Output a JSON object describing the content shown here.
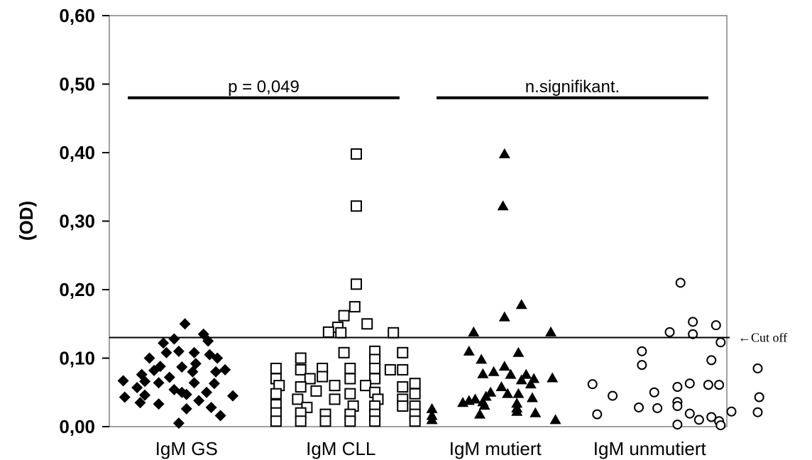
{
  "chart_data": {
    "type": "scatter",
    "title": "",
    "xlabel": "",
    "ylabel": "(OD)",
    "ylim": [
      0,
      0.6
    ],
    "yticks": [
      "0,00",
      "0,10",
      "0,20",
      "0,30",
      "0,40",
      "0,50",
      "0,60"
    ],
    "categories": [
      "IgM GS",
      "IgM CLL",
      "IgM mutiert",
      "IgM unmutiert"
    ],
    "cutoff": {
      "value": 0.13,
      "label": "←Cut off"
    },
    "annotations": [
      {
        "text": "p = 0,049",
        "groups": [
          "IgM GS",
          "IgM CLL"
        ],
        "y": 0.48
      },
      {
        "text": "n.signifikant.",
        "groups": [
          "IgM mutiert",
          "IgM unmutiert"
        ],
        "y": 0.48
      }
    ],
    "series": [
      {
        "marker": "diamond-filled",
        "points": [
          {
            "x": 0.49,
            "y": 0.15
          },
          {
            "x": 0.61,
            "y": 0.135
          },
          {
            "x": 0.42,
            "y": 0.128
          },
          {
            "x": 0.64,
            "y": 0.125
          },
          {
            "x": 0.35,
            "y": 0.122
          },
          {
            "x": 0.45,
            "y": 0.11
          },
          {
            "x": 0.37,
            "y": 0.108
          },
          {
            "x": 0.55,
            "y": 0.108
          },
          {
            "x": 0.65,
            "y": 0.105
          },
          {
            "x": 0.7,
            "y": 0.1
          },
          {
            "x": 0.26,
            "y": 0.1
          },
          {
            "x": 0.56,
            "y": 0.092
          },
          {
            "x": 0.33,
            "y": 0.088
          },
          {
            "x": 0.47,
            "y": 0.087
          },
          {
            "x": 0.75,
            "y": 0.083
          },
          {
            "x": 0.29,
            "y": 0.082
          },
          {
            "x": 0.54,
            "y": 0.08
          },
          {
            "x": 0.69,
            "y": 0.08
          },
          {
            "x": 0.21,
            "y": 0.076
          },
          {
            "x": 0.39,
            "y": 0.072
          },
          {
            "x": 0.09,
            "y": 0.067
          },
          {
            "x": 0.23,
            "y": 0.066
          },
          {
            "x": 0.32,
            "y": 0.064
          },
          {
            "x": 0.55,
            "y": 0.064
          },
          {
            "x": 0.68,
            "y": 0.063
          },
          {
            "x": 0.18,
            "y": 0.057
          },
          {
            "x": 0.42,
            "y": 0.054
          },
          {
            "x": 0.47,
            "y": 0.05
          },
          {
            "x": 0.63,
            "y": 0.05
          },
          {
            "x": 0.5,
            "y": 0.047
          },
          {
            "x": 0.23,
            "y": 0.046
          },
          {
            "x": 0.8,
            "y": 0.045
          },
          {
            "x": 0.1,
            "y": 0.043
          },
          {
            "x": 0.58,
            "y": 0.038
          },
          {
            "x": 0.2,
            "y": 0.035
          },
          {
            "x": 0.32,
            "y": 0.033
          },
          {
            "x": 0.66,
            "y": 0.028
          },
          {
            "x": 0.5,
            "y": 0.026
          },
          {
            "x": 0.72,
            "y": 0.016
          },
          {
            "x": 0.45,
            "y": 0.005
          }
        ]
      },
      {
        "marker": "square-open",
        "points": [
          {
            "x": 1.6,
            "y": 0.398
          },
          {
            "x": 1.6,
            "y": 0.322
          },
          {
            "x": 1.6,
            "y": 0.208
          },
          {
            "x": 1.59,
            "y": 0.175
          },
          {
            "x": 1.52,
            "y": 0.162
          },
          {
            "x": 1.67,
            "y": 0.15
          },
          {
            "x": 1.48,
            "y": 0.145
          },
          {
            "x": 1.42,
            "y": 0.138
          },
          {
            "x": 1.5,
            "y": 0.137
          },
          {
            "x": 1.84,
            "y": 0.137
          },
          {
            "x": 1.52,
            "y": 0.108
          },
          {
            "x": 1.72,
            "y": 0.11
          },
          {
            "x": 1.72,
            "y": 0.098
          },
          {
            "x": 1.9,
            "y": 0.108
          },
          {
            "x": 1.24,
            "y": 0.1
          },
          {
            "x": 1.08,
            "y": 0.085
          },
          {
            "x": 1.24,
            "y": 0.083
          },
          {
            "x": 1.38,
            "y": 0.085
          },
          {
            "x": 1.56,
            "y": 0.085
          },
          {
            "x": 1.72,
            "y": 0.085
          },
          {
            "x": 1.82,
            "y": 0.083
          },
          {
            "x": 1.9,
            "y": 0.083
          },
          {
            "x": 1.08,
            "y": 0.07
          },
          {
            "x": 1.3,
            "y": 0.07
          },
          {
            "x": 1.38,
            "y": 0.073
          },
          {
            "x": 1.56,
            "y": 0.07
          },
          {
            "x": 1.72,
            "y": 0.07
          },
          {
            "x": 1.98,
            "y": 0.063
          },
          {
            "x": 1.1,
            "y": 0.06
          },
          {
            "x": 1.24,
            "y": 0.058
          },
          {
            "x": 1.46,
            "y": 0.06
          },
          {
            "x": 1.66,
            "y": 0.06
          },
          {
            "x": 1.9,
            "y": 0.058
          },
          {
            "x": 1.08,
            "y": 0.048
          },
          {
            "x": 1.34,
            "y": 0.052
          },
          {
            "x": 1.56,
            "y": 0.048
          },
          {
            "x": 1.72,
            "y": 0.05
          },
          {
            "x": 1.98,
            "y": 0.048
          },
          {
            "x": 1.22,
            "y": 0.04
          },
          {
            "x": 1.46,
            "y": 0.04
          },
          {
            "x": 1.74,
            "y": 0.04
          },
          {
            "x": 1.9,
            "y": 0.04
          },
          {
            "x": 1.08,
            "y": 0.032
          },
          {
            "x": 1.28,
            "y": 0.028
          },
          {
            "x": 1.58,
            "y": 0.03
          },
          {
            "x": 1.72,
            "y": 0.03
          },
          {
            "x": 1.9,
            "y": 0.03
          },
          {
            "x": 1.98,
            "y": 0.03
          },
          {
            "x": 1.08,
            "y": 0.02
          },
          {
            "x": 1.24,
            "y": 0.02
          },
          {
            "x": 1.4,
            "y": 0.018
          },
          {
            "x": 1.56,
            "y": 0.018
          },
          {
            "x": 1.72,
            "y": 0.018
          },
          {
            "x": 1.98,
            "y": 0.018
          },
          {
            "x": 1.08,
            "y": 0.008
          },
          {
            "x": 1.24,
            "y": 0.008
          },
          {
            "x": 1.4,
            "y": 0.008
          },
          {
            "x": 1.56,
            "y": 0.008
          },
          {
            "x": 1.72,
            "y": 0.008
          },
          {
            "x": 1.98,
            "y": 0.008
          }
        ]
      },
      {
        "marker": "triangle-filled",
        "points": [
          {
            "x": 2.56,
            "y": 0.398
          },
          {
            "x": 2.55,
            "y": 0.322
          },
          {
            "x": 2.67,
            "y": 0.178
          },
          {
            "x": 2.56,
            "y": 0.16
          },
          {
            "x": 2.36,
            "y": 0.138
          },
          {
            "x": 2.86,
            "y": 0.138
          },
          {
            "x": 2.33,
            "y": 0.11
          },
          {
            "x": 2.65,
            "y": 0.108
          },
          {
            "x": 2.41,
            "y": 0.098
          },
          {
            "x": 2.56,
            "y": 0.088
          },
          {
            "x": 2.49,
            "y": 0.08
          },
          {
            "x": 2.42,
            "y": 0.077
          },
          {
            "x": 2.6,
            "y": 0.076
          },
          {
            "x": 2.7,
            "y": 0.076
          },
          {
            "x": 2.75,
            "y": 0.07
          },
          {
            "x": 2.87,
            "y": 0.071
          },
          {
            "x": 2.67,
            "y": 0.068
          },
          {
            "x": 2.73,
            "y": 0.062
          },
          {
            "x": 2.54,
            "y": 0.058
          },
          {
            "x": 2.47,
            "y": 0.05
          },
          {
            "x": 2.58,
            "y": 0.048
          },
          {
            "x": 2.65,
            "y": 0.048
          },
          {
            "x": 2.44,
            "y": 0.044
          },
          {
            "x": 2.74,
            "y": 0.042
          },
          {
            "x": 2.37,
            "y": 0.04
          },
          {
            "x": 2.33,
            "y": 0.038
          },
          {
            "x": 2.42,
            "y": 0.036
          },
          {
            "x": 2.29,
            "y": 0.035
          },
          {
            "x": 2.64,
            "y": 0.034
          },
          {
            "x": 2.43,
            "y": 0.031
          },
          {
            "x": 2.64,
            "y": 0.027
          },
          {
            "x": 2.09,
            "y": 0.026
          },
          {
            "x": 2.64,
            "y": 0.022
          },
          {
            "x": 2.76,
            "y": 0.02
          },
          {
            "x": 2.09,
            "y": 0.016
          },
          {
            "x": 2.4,
            "y": 0.018
          },
          {
            "x": 2.09,
            "y": 0.01
          },
          {
            "x": 2.89,
            "y": 0.01
          }
        ]
      },
      {
        "marker": "circle-open",
        "points": [
          {
            "x": 3.7,
            "y": 0.21
          },
          {
            "x": 3.78,
            "y": 0.153
          },
          {
            "x": 3.93,
            "y": 0.148
          },
          {
            "x": 3.63,
            "y": 0.138
          },
          {
            "x": 3.78,
            "y": 0.135
          },
          {
            "x": 3.96,
            "y": 0.123
          },
          {
            "x": 3.45,
            "y": 0.11
          },
          {
            "x": 3.9,
            "y": 0.097
          },
          {
            "x": 3.45,
            "y": 0.09
          },
          {
            "x": 4.2,
            "y": 0.085
          },
          {
            "x": 3.76,
            "y": 0.063
          },
          {
            "x": 3.95,
            "y": 0.061
          },
          {
            "x": 3.13,
            "y": 0.062
          },
          {
            "x": 3.68,
            "y": 0.058
          },
          {
            "x": 3.88,
            "y": 0.061
          },
          {
            "x": 3.53,
            "y": 0.05
          },
          {
            "x": 3.26,
            "y": 0.045
          },
          {
            "x": 4.21,
            "y": 0.043
          },
          {
            "x": 3.68,
            "y": 0.036
          },
          {
            "x": 3.68,
            "y": 0.03
          },
          {
            "x": 3.55,
            "y": 0.027
          },
          {
            "x": 3.43,
            "y": 0.028
          },
          {
            "x": 4.03,
            "y": 0.022
          },
          {
            "x": 4.2,
            "y": 0.021
          },
          {
            "x": 3.76,
            "y": 0.019
          },
          {
            "x": 3.16,
            "y": 0.018
          },
          {
            "x": 3.9,
            "y": 0.014
          },
          {
            "x": 3.82,
            "y": 0.01
          },
          {
            "x": 3.95,
            "y": 0.008
          },
          {
            "x": 3.68,
            "y": 0.003
          },
          {
            "x": 3.96,
            "y": 0.002
          }
        ]
      }
    ]
  }
}
